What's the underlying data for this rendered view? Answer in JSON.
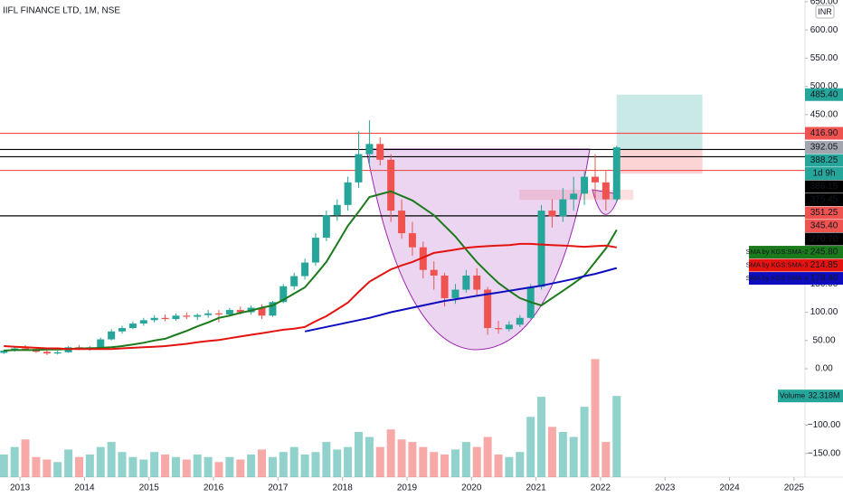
{
  "chart_data": {
    "type": "candlestick",
    "title": "IIFL FINANCE LTD, 1M, NSE",
    "currency": "INR",
    "up_color": "#26a69a",
    "down_color": "#ef5350",
    "x": [
      2012.75,
      2012.917,
      2013.083,
      2013.25,
      2013.417,
      2013.583,
      2013.75,
      2013.917,
      2014.083,
      2014.25,
      2014.417,
      2014.583,
      2014.75,
      2014.917,
      2015.083,
      2015.25,
      2015.417,
      2015.583,
      2015.75,
      2015.917,
      2016.083,
      2016.25,
      2016.417,
      2016.583,
      2016.75,
      2016.917,
      2017.083,
      2017.25,
      2017.417,
      2017.583,
      2017.75,
      2017.917,
      2018.083,
      2018.25,
      2018.417,
      2018.583,
      2018.75,
      2018.917,
      2019.083,
      2019.25,
      2019.417,
      2019.583,
      2019.75,
      2019.917,
      2020.083,
      2020.25,
      2020.417,
      2020.583,
      2020.75,
      2020.917,
      2021.083,
      2021.25,
      2021.417,
      2021.583,
      2021.75,
      2021.917,
      2022.083,
      2022.25
    ],
    "ohlc": [
      [
        28,
        34,
        26,
        32
      ],
      [
        32,
        38,
        30,
        36
      ],
      [
        36,
        42,
        33,
        35
      ],
      [
        35,
        37,
        28,
        30
      ],
      [
        30,
        33,
        24,
        27
      ],
      [
        27,
        32,
        25,
        29
      ],
      [
        29,
        40,
        28,
        38
      ],
      [
        38,
        42,
        33,
        36
      ],
      [
        36,
        40,
        32,
        38
      ],
      [
        38,
        55,
        37,
        52
      ],
      [
        52,
        70,
        50,
        66
      ],
      [
        66,
        76,
        62,
        72
      ],
      [
        72,
        84,
        70,
        80
      ],
      [
        80,
        90,
        76,
        86
      ],
      [
        86,
        95,
        82,
        90
      ],
      [
        90,
        96,
        84,
        88
      ],
      [
        88,
        98,
        85,
        94
      ],
      [
        94,
        100,
        88,
        92
      ],
      [
        92,
        98,
        86,
        95
      ],
      [
        95,
        104,
        90,
        98
      ],
      [
        98,
        104,
        82,
        96
      ],
      [
        96,
        108,
        92,
        104
      ],
      [
        104,
        110,
        96,
        100
      ],
      [
        100,
        112,
        96,
        108
      ],
      [
        108,
        114,
        88,
        94
      ],
      [
        94,
        120,
        92,
        118
      ],
      [
        118,
        150,
        116,
        146
      ],
      [
        146,
        170,
        140,
        164
      ],
      [
        164,
        195,
        158,
        188
      ],
      [
        188,
        240,
        182,
        232
      ],
      [
        232,
        280,
        226,
        272
      ],
      [
        272,
        300,
        262,
        290
      ],
      [
        290,
        340,
        280,
        330
      ],
      [
        330,
        420,
        320,
        380
      ],
      [
        380,
        440,
        360,
        398
      ],
      [
        398,
        410,
        360,
        370
      ],
      [
        370,
        380,
        260,
        280
      ],
      [
        280,
        300,
        230,
        240
      ],
      [
        240,
        260,
        200,
        215
      ],
      [
        215,
        225,
        160,
        175
      ],
      [
        175,
        190,
        140,
        165
      ],
      [
        165,
        170,
        110,
        125
      ],
      [
        125,
        150,
        115,
        140
      ],
      [
        140,
        175,
        135,
        165
      ],
      [
        165,
        178,
        130,
        140
      ],
      [
        140,
        145,
        60,
        72
      ],
      [
        72,
        85,
        62,
        70
      ],
      [
        70,
        84,
        66,
        78
      ],
      [
        78,
        95,
        74,
        90
      ],
      [
        90,
        150,
        88,
        145
      ],
      [
        145,
        290,
        140,
        280
      ],
      [
        280,
        300,
        250,
        270
      ],
      [
        270,
        320,
        260,
        300
      ],
      [
        300,
        340,
        280,
        310
      ],
      [
        310,
        350,
        290,
        340
      ],
      [
        340,
        380,
        300,
        330
      ],
      [
        330,
        350,
        280,
        300
      ],
      [
        300,
        395,
        295,
        392.05
      ]
    ],
    "volume": {
      "name": "Volume",
      "label": "32.318M",
      "values": [
        9,
        12,
        15,
        8,
        7,
        6,
        11,
        8,
        9,
        12,
        14,
        10,
        8,
        7,
        10,
        9,
        8,
        7,
        9,
        8,
        6,
        8,
        7,
        9,
        11,
        8,
        10,
        12,
        9,
        10,
        14,
        11,
        12,
        18,
        16,
        12,
        19,
        15,
        14,
        12,
        10,
        9,
        11,
        14,
        12,
        16,
        9,
        8,
        10,
        24,
        32,
        20,
        18,
        16,
        28,
        47,
        14,
        32.318
      ]
    },
    "series": [
      {
        "name": "SMA by KGS:SMA-2",
        "color": "#1b7a1b",
        "last_label": "245.80",
        "values": [
          32,
          33,
          33,
          33,
          34,
          34,
          35,
          36,
          36,
          37,
          38,
          40,
          43,
          46,
          50,
          53,
          60,
          67,
          75,
          82,
          90,
          94,
          99,
          103,
          108,
          112,
          122,
          133,
          144,
          166,
          189,
          221,
          253,
          278,
          304,
          309,
          314,
          306,
          298,
          285,
          272,
          253,
          234,
          211,
          189,
          170,
          152,
          138,
          125,
          118,
          112,
          125,
          138,
          151,
          165,
          189,
          213,
          245.8
        ]
      },
      {
        "name": "SMA by KGS:SMA-3",
        "color": "#e5130f",
        "last_label": "214.85",
        "values": [
          40,
          39,
          38,
          37,
          36,
          36,
          35,
          35,
          35,
          35,
          35,
          36,
          37,
          38,
          39,
          40,
          42,
          44,
          47,
          49,
          51,
          54,
          57,
          60,
          63,
          66,
          69,
          71,
          74,
          84,
          93,
          105,
          117,
          136,
          154,
          165,
          176,
          183,
          189,
          197,
          205,
          208,
          211,
          214,
          216,
          217,
          218,
          219,
          221,
          221,
          220,
          219,
          218,
          217,
          216,
          217,
          218,
          214.85
        ]
      },
      {
        "name": "SMA by KGS:SMA-4",
        "color": "#0d0dbf",
        "last_label": "178.40",
        "values": [
          null,
          null,
          null,
          null,
          null,
          null,
          null,
          null,
          null,
          null,
          null,
          null,
          null,
          null,
          null,
          null,
          null,
          null,
          null,
          null,
          null,
          null,
          null,
          null,
          null,
          null,
          null,
          null,
          66,
          70,
          74,
          78,
          82,
          86,
          90,
          95,
          100,
          104,
          108,
          112,
          116,
          120,
          123,
          126,
          129,
          132,
          135,
          138,
          141,
          144,
          147,
          151,
          155,
          159,
          164,
          168,
          173,
          178.4
        ]
      }
    ],
    "levels": [
      {
        "value": 416.9,
        "color": "#ef5350"
      },
      {
        "value": 388.25,
        "color": "#000000"
      },
      {
        "value": 375.45,
        "color": "#000000"
      },
      {
        "value": 351.25,
        "color": "#ef5350"
      },
      {
        "value": 270.7,
        "color": "#000000"
      }
    ],
    "zones": [
      {
        "x": [
          2022.25,
          2023.58
        ],
        "y": [
          388.25,
          485.4
        ],
        "color": "rgba(38,166,154,0.25)"
      },
      {
        "x": [
          2022.25,
          2023.58
        ],
        "y": [
          345.4,
          388.25
        ],
        "color": "rgba(239,83,80,0.25)"
      },
      {
        "x": [
          2020.74,
          2022.51
        ],
        "y": [
          299,
          317
        ],
        "color": "rgba(239,83,80,0.18)"
      }
    ],
    "price_labels": [
      {
        "value": 485.4,
        "label": "485.40",
        "color": "#26a69a"
      },
      {
        "value": 416.9,
        "label": "416.90",
        "color": "#ef5350"
      },
      {
        "value": 392.05,
        "label": "392.05",
        "color": "#a3a6af"
      },
      {
        "value": 388.25,
        "label": "388.25",
        "color": "#26a69a"
      },
      {
        "value": 386.15,
        "label": "386.15",
        "color": "#000000"
      },
      {
        "value": 375.45,
        "label": "375.45",
        "color": "#000000"
      },
      {
        "value": 351.25,
        "label": "351.25",
        "color": "#ef5350"
      },
      {
        "value": 345.4,
        "label": "345.40",
        "color": "#ef5350"
      },
      {
        "value": 270.7,
        "label": "270.70",
        "color": "#000000"
      }
    ],
    "countdown": "1d 9h",
    "xlim": [
      2012.69,
      2025.17
    ],
    "xticks": [
      2013,
      2014,
      2015,
      2016,
      2017,
      2018,
      2019,
      2020,
      2021,
      2022,
      2023,
      2024,
      2025
    ],
    "ylim": [
      -192,
      653
    ],
    "yticks": [
      {
        "value": 650,
        "label": "650.00"
      },
      {
        "value": 600,
        "label": "600.00"
      },
      {
        "value": 550,
        "label": "550.00"
      },
      {
        "value": 500,
        "label": "500.00"
      },
      {
        "value": 450,
        "label": "450.00"
      },
      {
        "value": 150,
        "label": "150.00"
      },
      {
        "value": 100,
        "label": "100.00"
      },
      {
        "value": 50,
        "label": "50.00"
      },
      {
        "value": 0,
        "label": "0.00"
      },
      {
        "value": -100,
        "label": "−100.00"
      },
      {
        "value": -150,
        "label": "−150.00"
      }
    ],
    "y3lim": [
      0,
      190
    ]
  }
}
